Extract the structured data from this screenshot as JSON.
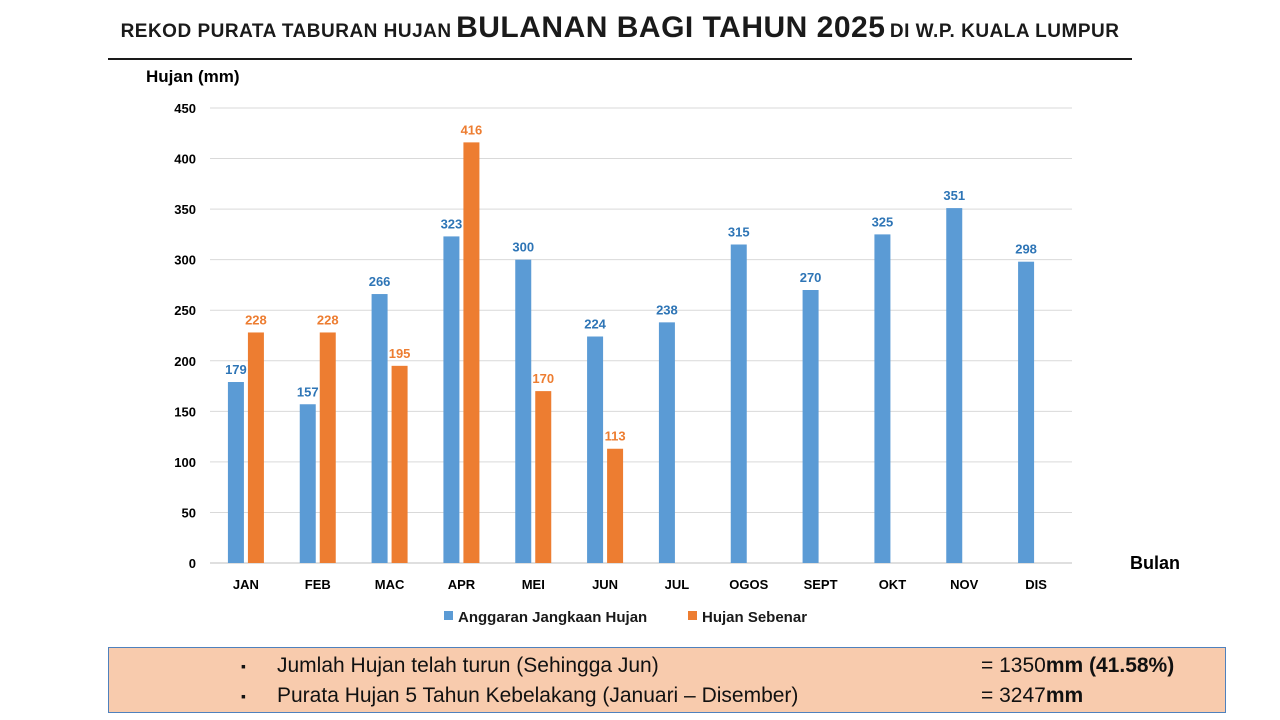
{
  "title": {
    "part1": "REKOD PURATA TABURAN HUJAN",
    "part2": "BULANAN BAGI TAHUN 2025",
    "part3": "DI W.P. KUALA LUMPUR"
  },
  "chart_data": {
    "type": "bar",
    "ylabel": "Hujan (mm)",
    "xlabel": "Bulan",
    "ylim": [
      0,
      450
    ],
    "yticks": [
      0,
      50,
      100,
      150,
      200,
      250,
      300,
      350,
      400,
      450
    ],
    "grid": true,
    "legend_position": "bottom",
    "categories": [
      "JAN",
      "FEB",
      "MAC",
      "APR",
      "MEI",
      "JUN",
      "JUL",
      "OGOS",
      "SEPT",
      "OKT",
      "NOV",
      "DIS"
    ],
    "series": [
      {
        "name": "Anggaran Jangkaan Hujan",
        "color": "#5b9bd5",
        "label_color": "#2e75b6",
        "values": [
          179,
          157,
          266,
          323,
          300,
          224,
          238,
          315,
          270,
          325,
          351,
          298
        ]
      },
      {
        "name": "Hujan Sebenar",
        "color": "#ed7d31",
        "label_color": "#ed7d31",
        "values": [
          228,
          228,
          195,
          416,
          170,
          113,
          null,
          null,
          null,
          null,
          null,
          null
        ]
      }
    ]
  },
  "summary": {
    "bullet": "▪",
    "row1": {
      "label": "Jumlah Hujan telah turun (Sehingga Jun)",
      "value_prefix": "= 1350",
      "value_unit": "mm (41.58%)"
    },
    "row2": {
      "label": "Purata Hujan 5 Tahun Kebelakang (Januari – Disember)",
      "value_prefix": "= 3247",
      "value_unit": "mm"
    }
  }
}
